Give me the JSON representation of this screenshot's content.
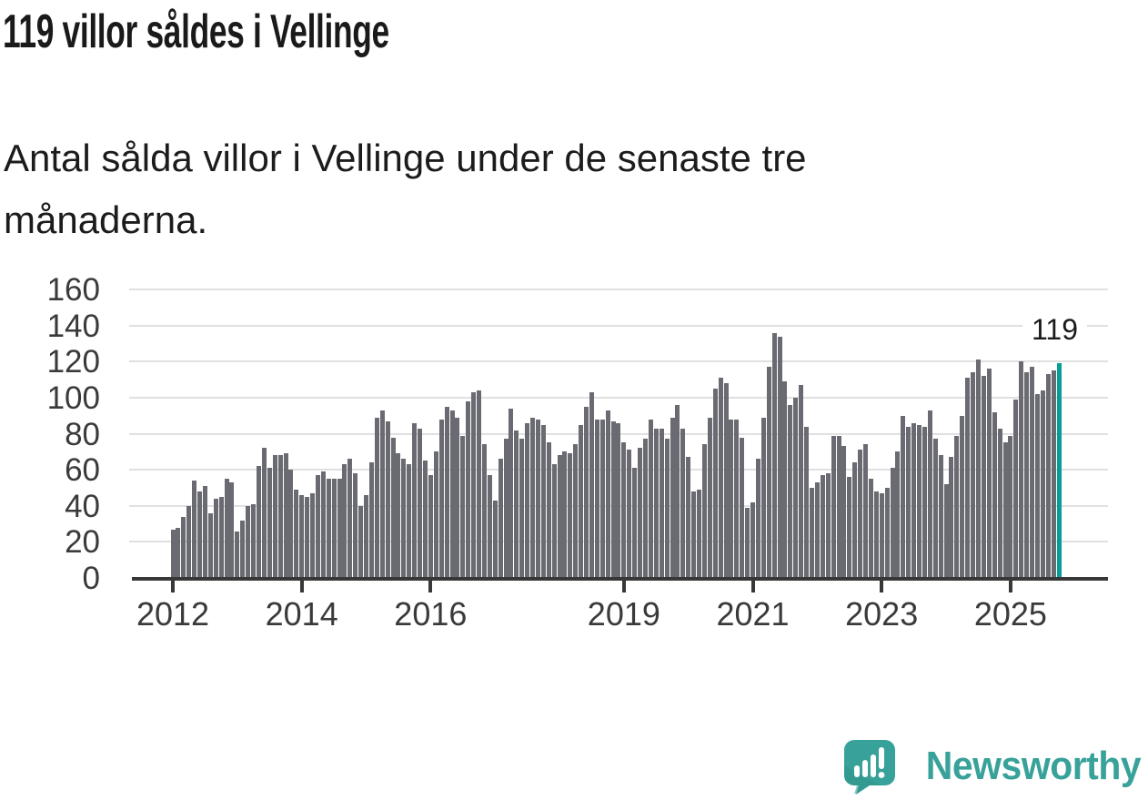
{
  "header": {
    "title": "119 villor såldes i Vellinge",
    "subtitle_line1": "Antal sålda villor i Vellinge under de senaste tre",
    "subtitle_line2": "månaderna."
  },
  "chart_data": {
    "type": "bar",
    "title": "119 villor såldes i Vellinge",
    "description": "Antal sålda villor i Vellinge under de senaste tre månaderna.",
    "x_period": "monthly, Jan 2012 – Oct 2025, rolling three-month totals",
    "ylim": [
      0,
      160
    ],
    "y_ticks": [
      0,
      20,
      40,
      60,
      80,
      100,
      120,
      140,
      160
    ],
    "grid": "horizontal",
    "x_ticks": [
      {
        "label": "2012",
        "month_index": 0
      },
      {
        "label": "2014",
        "month_index": 24
      },
      {
        "label": "2016",
        "month_index": 48
      },
      {
        "label": "2019",
        "month_index": 84
      },
      {
        "label": "2021",
        "month_index": 108
      },
      {
        "label": "2023",
        "month_index": 132
      },
      {
        "label": "2025",
        "month_index": 156
      }
    ],
    "values": [
      27,
      28,
      34,
      40,
      54,
      48,
      51,
      36,
      44,
      45,
      55,
      53,
      26,
      32,
      40,
      41,
      62,
      72,
      61,
      68,
      68,
      69,
      60,
      49,
      46,
      45,
      47,
      57,
      59,
      55,
      55,
      55,
      63,
      66,
      58,
      40,
      46,
      64,
      89,
      93,
      87,
      78,
      69,
      66,
      63,
      86,
      83,
      65,
      57,
      70,
      88,
      95,
      93,
      89,
      79,
      98,
      103,
      104,
      74,
      57,
      43,
      66,
      77,
      94,
      82,
      77,
      86,
      89,
      88,
      85,
      75,
      63,
      68,
      70,
      69,
      74,
      85,
      95,
      103,
      88,
      88,
      93,
      87,
      86,
      75,
      71,
      61,
      72,
      77,
      88,
      83,
      83,
      77,
      89,
      96,
      83,
      67,
      48,
      49,
      74,
      89,
      105,
      111,
      108,
      88,
      88,
      78,
      39,
      42,
      66,
      89,
      117,
      136,
      134,
      109,
      96,
      100,
      107,
      84,
      50,
      53,
      57,
      58,
      79,
      79,
      73,
      56,
      64,
      71,
      74,
      55,
      48,
      47,
      50,
      61,
      70,
      90,
      84,
      86,
      85,
      84,
      93,
      77,
      68,
      52,
      67,
      79,
      90,
      111,
      114,
      121,
      112,
      116,
      92,
      83,
      75,
      79,
      99,
      120,
      114,
      117,
      102,
      104,
      113,
      115,
      119
    ],
    "highlighted_last_value": 119,
    "annotation_label": "119",
    "legend": "none"
  },
  "colors": {
    "bar": "#6a6a72",
    "highlight": "#079e97",
    "gridline": "#e0e0e0",
    "axis": "#383838",
    "tick_text": "#3a3a3a",
    "text": "#1a1a1a",
    "brand": "#38a29a"
  },
  "footer": {
    "brand": "Newsworthy",
    "logo_icon": "speech-bubble-bar-chart-icon"
  }
}
